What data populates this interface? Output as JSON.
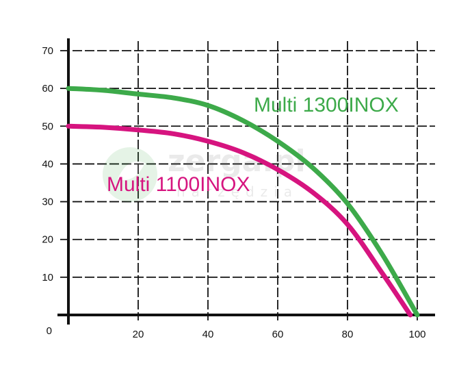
{
  "chart_data": {
    "type": "line",
    "title": "",
    "xlabel": "",
    "ylabel": "",
    "xlim": [
      0,
      100
    ],
    "ylim": [
      0,
      70
    ],
    "x_ticks": [
      "20",
      "40",
      "60",
      "80",
      "100"
    ],
    "y_ticks": [
      "10",
      "20",
      "30",
      "40",
      "50",
      "60",
      "70"
    ],
    "origin_label": "0",
    "grid": true,
    "series": [
      {
        "name": "Multi 1300INOX",
        "color": "#3daa4a",
        "x": [
          0,
          10,
          20,
          30,
          40,
          50,
          60,
          70,
          80,
          90,
          100
        ],
        "y": [
          60,
          59.5,
          58.5,
          57.5,
          55.5,
          51.5,
          46,
          39,
          29.5,
          16,
          0
        ]
      },
      {
        "name": "Multi 1100INOX",
        "color": "#d6147f",
        "x": [
          0,
          10,
          20,
          30,
          40,
          50,
          60,
          70,
          80,
          90,
          98
        ],
        "y": [
          50,
          49.7,
          49,
          48,
          46,
          43,
          38.5,
          32.5,
          24,
          11,
          0
        ]
      }
    ],
    "watermark": {
      "text": "zerga.pl",
      "subtext": "narzędzia"
    }
  }
}
